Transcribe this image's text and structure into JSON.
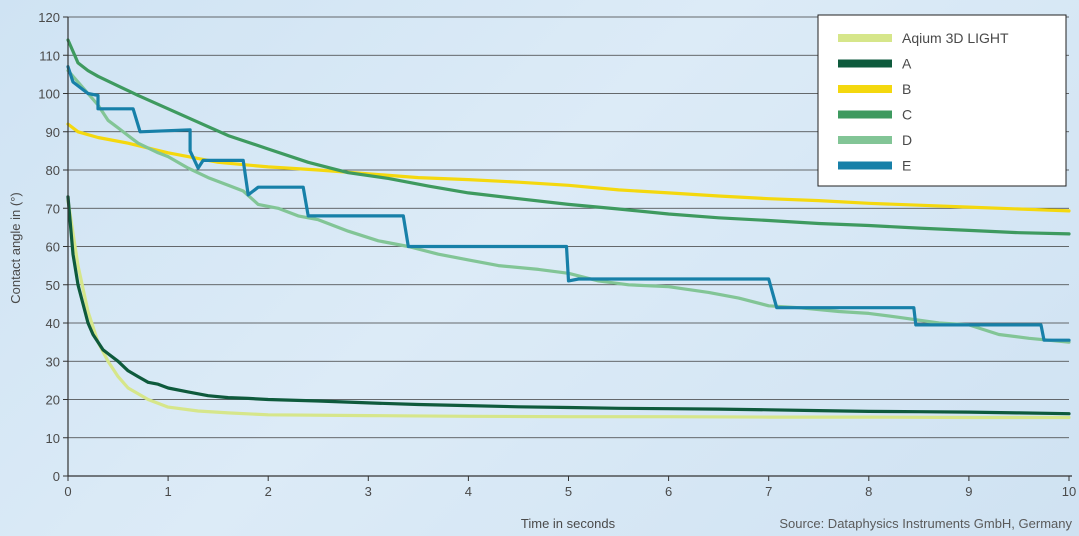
{
  "chart_data": {
    "type": "line",
    "xlabel": "Time in seconds",
    "ylabel": "Contact angle in (°)",
    "source": "Source: Dataphysics Instruments GmbH, Germany",
    "xlim": [
      0,
      10
    ],
    "ylim": [
      0,
      120
    ],
    "x_ticks": [
      "0",
      "1",
      "2",
      "3",
      "4",
      "5",
      "6",
      "7",
      "8",
      "9",
      "10"
    ],
    "y_ticks": [
      "0",
      "10",
      "20",
      "30",
      "40",
      "50",
      "60",
      "70",
      "80",
      "90",
      "100",
      "110",
      "120"
    ],
    "grid": true,
    "legend_position": "top-right",
    "series": [
      {
        "name": "Aqium 3D LIGHT",
        "color": "#d6e68a",
        "points": [
          [
            0,
            72
          ],
          [
            0.1,
            55
          ],
          [
            0.2,
            43
          ],
          [
            0.3,
            35
          ],
          [
            0.4,
            30
          ],
          [
            0.5,
            26
          ],
          [
            0.6,
            23
          ],
          [
            0.8,
            20
          ],
          [
            1.0,
            18
          ],
          [
            1.3,
            17
          ],
          [
            1.6,
            16.5
          ],
          [
            2.0,
            16
          ],
          [
            3.0,
            15.8
          ],
          [
            4.0,
            15.6
          ],
          [
            5.0,
            15.5
          ],
          [
            6.0,
            15.5
          ],
          [
            7.0,
            15.4
          ],
          [
            8.0,
            15.4
          ],
          [
            9.0,
            15.3
          ],
          [
            10.0,
            15.3
          ]
        ]
      },
      {
        "name": "A",
        "color": "#0e5a3c",
        "points": [
          [
            0,
            73
          ],
          [
            0.05,
            58
          ],
          [
            0.1,
            50
          ],
          [
            0.15,
            45
          ],
          [
            0.2,
            40
          ],
          [
            0.25,
            37
          ],
          [
            0.3,
            35
          ],
          [
            0.35,
            33
          ],
          [
            0.4,
            32
          ],
          [
            0.5,
            30
          ],
          [
            0.6,
            27.5
          ],
          [
            0.7,
            26
          ],
          [
            0.8,
            24.5
          ],
          [
            0.9,
            24
          ],
          [
            1.0,
            23
          ],
          [
            1.2,
            22
          ],
          [
            1.4,
            21
          ],
          [
            1.6,
            20.5
          ],
          [
            1.8,
            20.3
          ],
          [
            2.0,
            20
          ],
          [
            2.5,
            19.6
          ],
          [
            3.0,
            19.1
          ],
          [
            3.5,
            18.7
          ],
          [
            4.0,
            18.4
          ],
          [
            4.5,
            18.1
          ],
          [
            5.0,
            17.9
          ],
          [
            5.5,
            17.7
          ],
          [
            6.0,
            17.6
          ],
          [
            6.5,
            17.5
          ],
          [
            7.0,
            17.3
          ],
          [
            7.5,
            17.1
          ],
          [
            8.0,
            16.9
          ],
          [
            8.5,
            16.8
          ],
          [
            9.0,
            16.7
          ],
          [
            9.5,
            16.5
          ],
          [
            10.0,
            16.3
          ]
        ]
      },
      {
        "name": "B",
        "color": "#f4d80e",
        "points": [
          [
            0,
            92
          ],
          [
            0.1,
            90
          ],
          [
            0.3,
            88.5
          ],
          [
            0.6,
            87
          ],
          [
            1.0,
            84.5
          ],
          [
            1.5,
            82
          ],
          [
            2.0,
            80.8
          ],
          [
            2.5,
            80
          ],
          [
            3.0,
            79
          ],
          [
            3.5,
            78
          ],
          [
            4.0,
            77.5
          ],
          [
            4.5,
            76.8
          ],
          [
            5.0,
            76
          ],
          [
            5.5,
            74.8
          ],
          [
            6.0,
            74
          ],
          [
            6.5,
            73.2
          ],
          [
            7.0,
            72.5
          ],
          [
            7.5,
            72
          ],
          [
            8.0,
            71.3
          ],
          [
            8.5,
            70.8
          ],
          [
            9.0,
            70.3
          ],
          [
            9.5,
            69.8
          ],
          [
            10.0,
            69.3
          ]
        ]
      },
      {
        "name": "C",
        "color": "#3e9a5f",
        "points": [
          [
            0,
            114
          ],
          [
            0.05,
            111
          ],
          [
            0.1,
            108
          ],
          [
            0.2,
            106
          ],
          [
            0.3,
            104.5
          ],
          [
            0.5,
            102
          ],
          [
            0.7,
            99.5
          ],
          [
            1.0,
            96
          ],
          [
            1.3,
            92.5
          ],
          [
            1.6,
            89
          ],
          [
            2.0,
            85.5
          ],
          [
            2.4,
            82
          ],
          [
            2.8,
            79.3
          ],
          [
            3.2,
            77.8
          ],
          [
            3.6,
            75.8
          ],
          [
            4.0,
            74
          ],
          [
            4.5,
            72.5
          ],
          [
            5.0,
            71
          ],
          [
            5.5,
            69.8
          ],
          [
            6.0,
            68.5
          ],
          [
            6.5,
            67.5
          ],
          [
            7.0,
            66.8
          ],
          [
            7.5,
            66
          ],
          [
            8.0,
            65.5
          ],
          [
            8.5,
            64.8
          ],
          [
            9.0,
            64.2
          ],
          [
            9.5,
            63.6
          ],
          [
            10.0,
            63.3
          ]
        ]
      },
      {
        "name": "D",
        "color": "#82c596",
        "points": [
          [
            0,
            106
          ],
          [
            0.1,
            103
          ],
          [
            0.2,
            100
          ],
          [
            0.3,
            97
          ],
          [
            0.4,
            93
          ],
          [
            0.5,
            91
          ],
          [
            0.7,
            87
          ],
          [
            0.9,
            84.5
          ],
          [
            1.0,
            83.5
          ],
          [
            1.2,
            80.5
          ],
          [
            1.4,
            78
          ],
          [
            1.6,
            76
          ],
          [
            1.75,
            74.5
          ],
          [
            1.9,
            71
          ],
          [
            2.1,
            70
          ],
          [
            2.3,
            68
          ],
          [
            2.5,
            67
          ],
          [
            2.8,
            64
          ],
          [
            3.1,
            61.5
          ],
          [
            3.4,
            60
          ],
          [
            3.7,
            58
          ],
          [
            4.0,
            56.5
          ],
          [
            4.3,
            55
          ],
          [
            4.7,
            54
          ],
          [
            5.0,
            53
          ],
          [
            5.3,
            51
          ],
          [
            5.6,
            50
          ],
          [
            6.0,
            49.5
          ],
          [
            6.4,
            48
          ],
          [
            6.7,
            46.5
          ],
          [
            7.0,
            44.5
          ],
          [
            7.3,
            44
          ],
          [
            7.7,
            43
          ],
          [
            8.0,
            42.5
          ],
          [
            8.3,
            41.5
          ],
          [
            8.7,
            40
          ],
          [
            9.0,
            39.5
          ],
          [
            9.3,
            37
          ],
          [
            9.6,
            36
          ],
          [
            10.0,
            35
          ]
        ]
      },
      {
        "name": "E",
        "color": "#1780a8",
        "points": [
          [
            0,
            107
          ],
          [
            0.05,
            103
          ],
          [
            0.2,
            100
          ],
          [
            0.3,
            99.5
          ],
          [
            0.3,
            96
          ],
          [
            0.65,
            96
          ],
          [
            0.72,
            90
          ],
          [
            1.22,
            90.5
          ],
          [
            1.22,
            85
          ],
          [
            1.3,
            80.5
          ],
          [
            1.35,
            82.5
          ],
          [
            1.75,
            82.5
          ],
          [
            1.8,
            73.5
          ],
          [
            1.9,
            75.5
          ],
          [
            2.35,
            75.5
          ],
          [
            2.4,
            68
          ],
          [
            3.35,
            68
          ],
          [
            3.4,
            60
          ],
          [
            4.98,
            60
          ],
          [
            5.0,
            51
          ],
          [
            5.1,
            51.5
          ],
          [
            7.0,
            51.5
          ],
          [
            7.08,
            44
          ],
          [
            7.9,
            44
          ],
          [
            8.45,
            44
          ],
          [
            8.47,
            39.5
          ],
          [
            9.72,
            39.5
          ],
          [
            9.75,
            35.5
          ],
          [
            10.0,
            35.5
          ]
        ]
      }
    ]
  }
}
